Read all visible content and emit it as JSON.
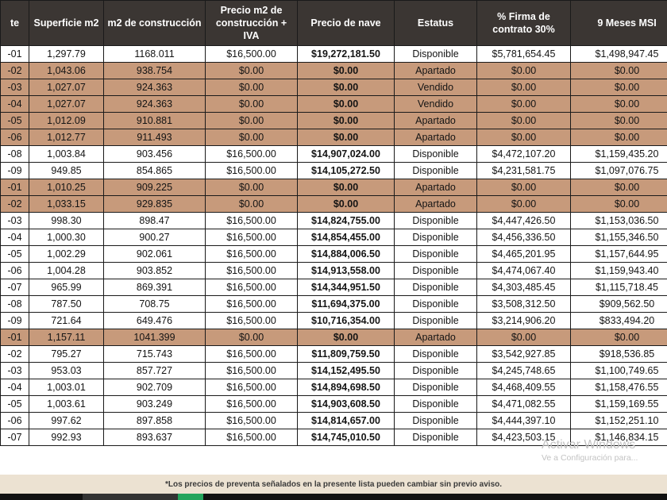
{
  "colors": {
    "header-bg": "#3b3633",
    "reserved-row-bg": "#c79a7b",
    "grid-line": "#1a1a1a",
    "note-bg": "#ece2d2",
    "sheet-bar-bg": "#111111",
    "sheet-accent": "#23a45c",
    "watermark": "#c3c3c3"
  },
  "table": {
    "columns": [
      {
        "key": "lote",
        "label": "te"
      },
      {
        "key": "superficie",
        "label": "Superficie m2"
      },
      {
        "key": "m2_construccion",
        "label": "m2 de construcción"
      },
      {
        "key": "precio_m2",
        "label": "Precio m2 de construcción + IVA"
      },
      {
        "key": "precio_nave",
        "label": "Precio de nave"
      },
      {
        "key": "estatus",
        "label": "Estatus"
      },
      {
        "key": "firma_30",
        "label": "% Firma de contrato 30%"
      },
      {
        "key": "meses_msi",
        "label": "9 Meses MSI"
      }
    ],
    "rows": [
      {
        "lote": "-01",
        "superficie": "1,297.79",
        "m2_construccion": "1168.011",
        "precio_m2": "$16,500.00",
        "precio_nave": "$19,272,181.50",
        "estatus": "Disponible",
        "firma_30": "$5,781,654.45",
        "meses_msi": "$1,498,947.45"
      },
      {
        "lote": "-02",
        "superficie": "1,043.06",
        "m2_construccion": "938.754",
        "precio_m2": "$0.00",
        "precio_nave": "$0.00",
        "estatus": "Apartado",
        "firma_30": "$0.00",
        "meses_msi": "$0.00"
      },
      {
        "lote": "-03",
        "superficie": "1,027.07",
        "m2_construccion": "924.363",
        "precio_m2": "$0.00",
        "precio_nave": "$0.00",
        "estatus": "Vendido",
        "firma_30": "$0.00",
        "meses_msi": "$0.00"
      },
      {
        "lote": "-04",
        "superficie": "1,027.07",
        "m2_construccion": "924.363",
        "precio_m2": "$0.00",
        "precio_nave": "$0.00",
        "estatus": "Vendido",
        "firma_30": "$0.00",
        "meses_msi": "$0.00"
      },
      {
        "lote": "-05",
        "superficie": "1,012.09",
        "m2_construccion": "910.881",
        "precio_m2": "$0.00",
        "precio_nave": "$0.00",
        "estatus": "Apartado",
        "firma_30": "$0.00",
        "meses_msi": "$0.00"
      },
      {
        "lote": "-06",
        "superficie": "1,012.77",
        "m2_construccion": "911.493",
        "precio_m2": "$0.00",
        "precio_nave": "$0.00",
        "estatus": "Apartado",
        "firma_30": "$0.00",
        "meses_msi": "$0.00"
      },
      {
        "lote": "-08",
        "superficie": "1,003.84",
        "m2_construccion": "903.456",
        "precio_m2": "$16,500.00",
        "precio_nave": "$14,907,024.00",
        "estatus": "Disponible",
        "firma_30": "$4,472,107.20",
        "meses_msi": "$1,159,435.20"
      },
      {
        "lote": "-09",
        "superficie": "949.85",
        "m2_construccion": "854.865",
        "precio_m2": "$16,500.00",
        "precio_nave": "$14,105,272.50",
        "estatus": "Disponible",
        "firma_30": "$4,231,581.75",
        "meses_msi": "$1,097,076.75"
      },
      {
        "lote": "-01",
        "superficie": "1,010.25",
        "m2_construccion": "909.225",
        "precio_m2": "$0.00",
        "precio_nave": "$0.00",
        "estatus": "Apartado",
        "firma_30": "$0.00",
        "meses_msi": "$0.00"
      },
      {
        "lote": "-02",
        "superficie": "1,033.15",
        "m2_construccion": "929.835",
        "precio_m2": "$0.00",
        "precio_nave": "$0.00",
        "estatus": "Apartado",
        "firma_30": "$0.00",
        "meses_msi": "$0.00"
      },
      {
        "lote": "-03",
        "superficie": "998.30",
        "m2_construccion": "898.47",
        "precio_m2": "$16,500.00",
        "precio_nave": "$14,824,755.00",
        "estatus": "Disponible",
        "firma_30": "$4,447,426.50",
        "meses_msi": "$1,153,036.50"
      },
      {
        "lote": "-04",
        "superficie": "1,000.30",
        "m2_construccion": "900.27",
        "precio_m2": "$16,500.00",
        "precio_nave": "$14,854,455.00",
        "estatus": "Disponible",
        "firma_30": "$4,456,336.50",
        "meses_msi": "$1,155,346.50"
      },
      {
        "lote": "-05",
        "superficie": "1,002.29",
        "m2_construccion": "902.061",
        "precio_m2": "$16,500.00",
        "precio_nave": "$14,884,006.50",
        "estatus": "Disponible",
        "firma_30": "$4,465,201.95",
        "meses_msi": "$1,157,644.95"
      },
      {
        "lote": "-06",
        "superficie": "1,004.28",
        "m2_construccion": "903.852",
        "precio_m2": "$16,500.00",
        "precio_nave": "$14,913,558.00",
        "estatus": "Disponible",
        "firma_30": "$4,474,067.40",
        "meses_msi": "$1,159,943.40"
      },
      {
        "lote": "-07",
        "superficie": "965.99",
        "m2_construccion": "869.391",
        "precio_m2": "$16,500.00",
        "precio_nave": "$14,344,951.50",
        "estatus": "Disponible",
        "firma_30": "$4,303,485.45",
        "meses_msi": "$1,115,718.45"
      },
      {
        "lote": "-08",
        "superficie": "787.50",
        "m2_construccion": "708.75",
        "precio_m2": "$16,500.00",
        "precio_nave": "$11,694,375.00",
        "estatus": "Disponible",
        "firma_30": "$3,508,312.50",
        "meses_msi": "$909,562.50"
      },
      {
        "lote": "-09",
        "superficie": "721.64",
        "m2_construccion": "649.476",
        "precio_m2": "$16,500.00",
        "precio_nave": "$10,716,354.00",
        "estatus": "Disponible",
        "firma_30": "$3,214,906.20",
        "meses_msi": "$833,494.20"
      },
      {
        "lote": "-01",
        "superficie": "1,157.11",
        "m2_construccion": "1041.399",
        "precio_m2": "$0.00",
        "precio_nave": "$0.00",
        "estatus": "Apartado",
        "firma_30": "$0.00",
        "meses_msi": "$0.00"
      },
      {
        "lote": "-02",
        "superficie": "795.27",
        "m2_construccion": "715.743",
        "precio_m2": "$16,500.00",
        "precio_nave": "$11,809,759.50",
        "estatus": "Disponible",
        "firma_30": "$3,542,927.85",
        "meses_msi": "$918,536.85"
      },
      {
        "lote": "-03",
        "superficie": "953.03",
        "m2_construccion": "857.727",
        "precio_m2": "$16,500.00",
        "precio_nave": "$14,152,495.50",
        "estatus": "Disponible",
        "firma_30": "$4,245,748.65",
        "meses_msi": "$1,100,749.65"
      },
      {
        "lote": "-04",
        "superficie": "1,003.01",
        "m2_construccion": "902.709",
        "precio_m2": "$16,500.00",
        "precio_nave": "$14,894,698.50",
        "estatus": "Disponible",
        "firma_30": "$4,468,409.55",
        "meses_msi": "$1,158,476.55"
      },
      {
        "lote": "-05",
        "superficie": "1,003.61",
        "m2_construccion": "903.249",
        "precio_m2": "$16,500.00",
        "precio_nave": "$14,903,608.50",
        "estatus": "Disponible",
        "firma_30": "$4,471,082.55",
        "meses_msi": "$1,159,169.55"
      },
      {
        "lote": "-06",
        "superficie": "997.62",
        "m2_construccion": "897.858",
        "precio_m2": "$16,500.00",
        "precio_nave": "$14,814,657.00",
        "estatus": "Disponible",
        "firma_30": "$4,444,397.10",
        "meses_msi": "$1,152,251.10"
      },
      {
        "lote": "-07",
        "superficie": "992.93",
        "m2_construccion": "893.637",
        "precio_m2": "$16,500.00",
        "precio_nave": "$14,745,010.50",
        "estatus": "Disponible",
        "firma_30": "$4,423,503.15",
        "meses_msi": "$1,146,834.15"
      }
    ]
  },
  "footer": {
    "note": "*Los precios de preventa señalados en la presente lista pueden cambiar sin previo aviso."
  },
  "watermark": {
    "line1": "Activar Windows",
    "line2": "Ve a Configuración para..."
  }
}
